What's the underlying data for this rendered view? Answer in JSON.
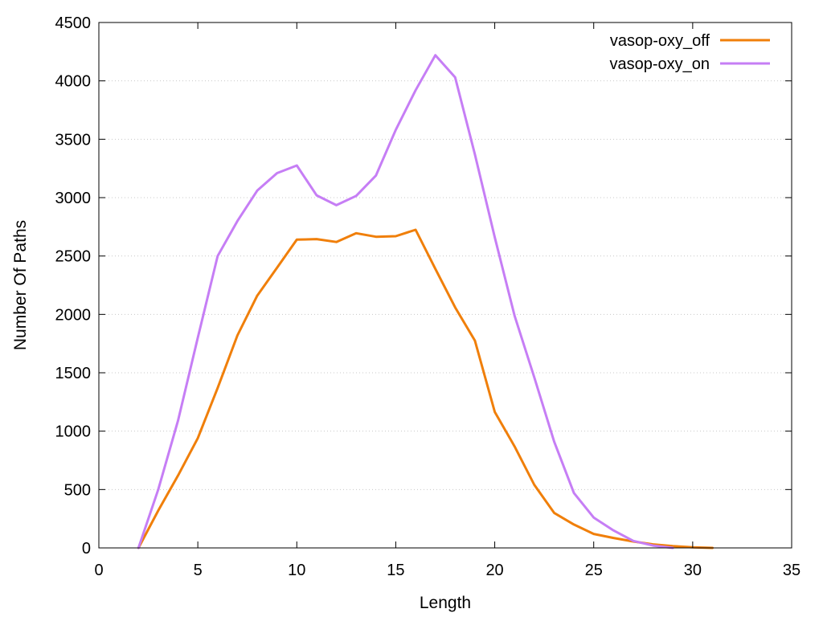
{
  "chart_data": {
    "type": "line",
    "title": "",
    "xlabel": "Length",
    "ylabel": "Number Of Paths",
    "xlim": [
      0,
      35
    ],
    "ylim": [
      0,
      4500
    ],
    "xticks": [
      "0",
      "5",
      "10",
      "15",
      "20",
      "25",
      "30",
      "35"
    ],
    "yticks": [
      "0",
      "500",
      "1000",
      "1500",
      "2000",
      "2500",
      "3000",
      "3500",
      "4000",
      "4500"
    ],
    "grid": "horizontal dotted",
    "legend_position": "top-right",
    "series": [
      {
        "name": "vasop-oxy_off",
        "color": "#f07f0a",
        "x": [
          2,
          3,
          4,
          5,
          6,
          7,
          8,
          9,
          10,
          11,
          12,
          13,
          14,
          15,
          16,
          17,
          18,
          19,
          20,
          21,
          22,
          23,
          24,
          25,
          26,
          27,
          28,
          29,
          30,
          31
        ],
        "y": [
          0,
          320,
          620,
          940,
          1370,
          1820,
          2160,
          2400,
          2640,
          2645,
          2620,
          2695,
          2665,
          2670,
          2725,
          2390,
          2060,
          1775,
          1165,
          870,
          540,
          300,
          200,
          120,
          85,
          55,
          30,
          15,
          5,
          0
        ]
      },
      {
        "name": "vasop-oxy_on",
        "color": "#c67ef5",
        "x": [
          2,
          3,
          4,
          5,
          6,
          7,
          8,
          9,
          10,
          11,
          12,
          13,
          14,
          15,
          16,
          17,
          18,
          19,
          20,
          21,
          22,
          23,
          24,
          25,
          26,
          27,
          28,
          29
        ],
        "y": [
          0,
          500,
          1090,
          1800,
          2500,
          2800,
          3060,
          3210,
          3275,
          3020,
          2935,
          3015,
          3190,
          3580,
          3920,
          4220,
          4030,
          3370,
          2660,
          1990,
          1460,
          910,
          470,
          260,
          150,
          60,
          20,
          0
        ]
      }
    ]
  }
}
